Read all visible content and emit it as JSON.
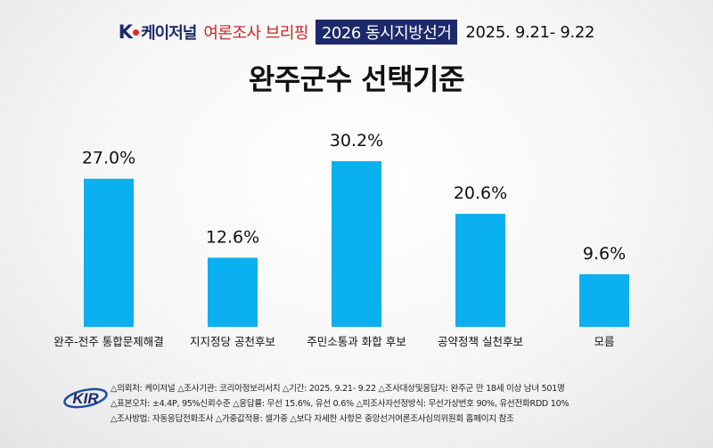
{
  "header": {
    "brand_k": "K",
    "brand_rest": "케이저널",
    "briefing": "여론조사 브리핑",
    "election": "2026 동시지방선거",
    "dates": "2025. 9.21- 9.22"
  },
  "chart_data": {
    "type": "bar",
    "title": "완주군수 선택기준",
    "categories": [
      "완주-전주 통합문제해결",
      "지지정당 공천후보",
      "주민소통과 화합 후보",
      "공약정책 실천후보",
      "모름"
    ],
    "values": [
      27.0,
      12.6,
      30.2,
      20.6,
      9.6
    ],
    "value_labels": [
      "27.0%",
      "12.6%",
      "30.2%",
      "20.6%",
      "9.6%"
    ],
    "ylim": [
      0,
      30.2
    ],
    "grid": false,
    "bar_color": "#0ab0ef"
  },
  "footer": {
    "logo_text": "KIR",
    "line1": "△의뢰처: 케이저널 △조사기관: 코리아정보리서치 △기간: 2025. 9.21- 9.22 △조사대상및응답자: 완주군 만 18세 이상 남녀 501명",
    "line2": "△표본오차: ±4.4P, 95%신뢰수준 △응답률: 무선 15.6%, 유선 0.6% △피조사자선정방식: 무선가상번호 90%, 유선전화RDD 10%",
    "line3": "△조사방법: 자동응답전화조사 △가중값적용: 셀가중 △보다 자세한 사항은 중앙선거여론조사심의위원회 홈페이지 참조"
  }
}
